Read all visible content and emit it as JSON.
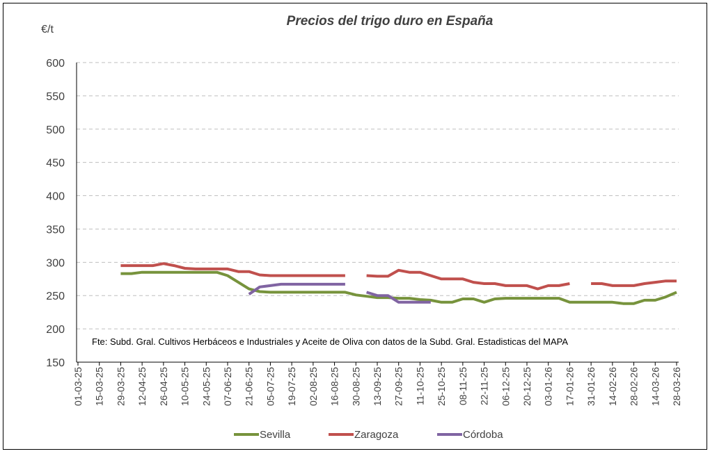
{
  "chart_data": {
    "type": "line",
    "title": "Precios del trigo duro en España",
    "y_label": "€/t",
    "annotation": "Fte: Subd. Gral. Cultivos Herbáceos e Industriales y Aceite de Oliva con datos de la Subd. Gral. Estadisticas del MAPA",
    "categories": [
      "01-03-25",
      null,
      "15-03-25",
      null,
      "29-03-25",
      null,
      "12-04-25",
      null,
      "26-04-25",
      null,
      "10-05-25",
      null,
      "24-05-25",
      null,
      "07-06-25",
      null,
      "21-06-25",
      null,
      "05-07-25",
      null,
      "19-07-25",
      null,
      "02-08-25",
      null,
      "16-08-25",
      null,
      "30-08-25",
      null,
      "13-09-25",
      null,
      "27-09-25",
      null,
      "11-10-25",
      null,
      "25-10-25",
      null,
      "08-11-25",
      null,
      "22-11-25",
      null,
      "06-12-25",
      null,
      "20-12-25",
      null,
      "03-01-26",
      null,
      "17-01-26",
      null,
      "31-01-26",
      null,
      "14-02-26",
      null,
      "28-02-26",
      null,
      "14-03-26",
      null,
      "28-03-26"
    ],
    "series": [
      {
        "name": "Sevilla",
        "color": "#77933c",
        "values": [
          null,
          null,
          null,
          null,
          283,
          283,
          285,
          285,
          285,
          285,
          285,
          285,
          285,
          285,
          280,
          270,
          260,
          256,
          255,
          255,
          255,
          255,
          255,
          255,
          255,
          255,
          251,
          249,
          247,
          247,
          246,
          246,
          244,
          243,
          240,
          240,
          245,
          245,
          240,
          245,
          246,
          246,
          246,
          246,
          246,
          246,
          240,
          240,
          240,
          240,
          240,
          238,
          238,
          243,
          243,
          248,
          255
        ]
      },
      {
        "name": "Zaragoza",
        "color": "#c0504d",
        "values": [
          null,
          null,
          null,
          null,
          295,
          295,
          295,
          295,
          298,
          295,
          291,
          290,
          290,
          290,
          290,
          286,
          286,
          281,
          280,
          280,
          280,
          280,
          280,
          280,
          280,
          280,
          null,
          280,
          279,
          279,
          288,
          285,
          285,
          280,
          275,
          275,
          275,
          270,
          268,
          268,
          265,
          265,
          265,
          260,
          265,
          265,
          268,
          null,
          268,
          268,
          265,
          265,
          265,
          268,
          270,
          272,
          272
        ]
      },
      {
        "name": "Córdoba",
        "color": "#8064a2",
        "values": [
          null,
          null,
          null,
          null,
          null,
          null,
          null,
          null,
          null,
          null,
          null,
          null,
          null,
          null,
          null,
          null,
          252,
          263,
          265,
          267,
          267,
          267,
          267,
          267,
          267,
          267,
          null,
          255,
          250,
          250,
          240,
          240,
          240,
          240,
          null,
          null,
          null,
          null,
          null,
          null,
          null,
          null,
          null,
          null,
          null,
          null,
          null,
          null,
          null,
          null,
          null,
          null,
          null,
          null,
          null,
          null,
          null
        ]
      }
    ],
    "ylim": [
      150,
      600
    ],
    "yticks": [
      150,
      200,
      250,
      300,
      350,
      400,
      450,
      500,
      550,
      600
    ],
    "grid": true,
    "legend": "bottom"
  }
}
